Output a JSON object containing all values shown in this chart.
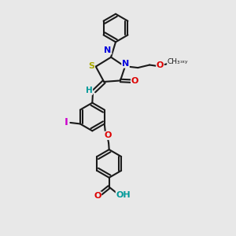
{
  "bg": "#e8e8e8",
  "bc": "#1a1a1a",
  "Sc": "#aaaa00",
  "Nc": "#0000dd",
  "Oc": "#dd0000",
  "Ic": "#cc00cc",
  "Hc": "#009999",
  "lw": 1.5,
  "lw2": 1.2,
  "fs": 7.5,
  "fig_w": 3.0,
  "fig_h": 3.0,
  "dpi": 100,
  "xlim": [
    0,
    10
  ],
  "ylim": [
    0,
    10
  ]
}
